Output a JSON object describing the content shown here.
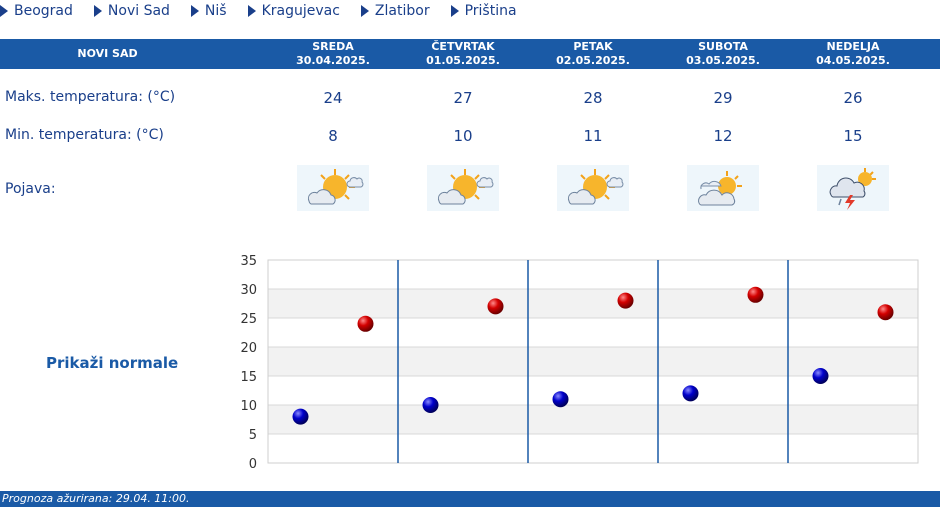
{
  "cities": [
    {
      "name": "Beograd"
    },
    {
      "name": "Novi Sad"
    },
    {
      "name": "Niš"
    },
    {
      "name": "Kragujevac"
    },
    {
      "name": "Zlatibor"
    },
    {
      "name": "Priština"
    }
  ],
  "table": {
    "city_title": "NOVI SAD",
    "days": [
      {
        "name": "SREDA",
        "date": "30.04.2025.",
        "max": "24",
        "min": "8",
        "icon": "sun-cloud-icon"
      },
      {
        "name": "ČETVRTAK",
        "date": "01.05.2025.",
        "max": "27",
        "min": "10",
        "icon": "sun-cloud-icon"
      },
      {
        "name": "PETAK",
        "date": "02.05.2025.",
        "max": "28",
        "min": "11",
        "icon": "sun-cloud-icon"
      },
      {
        "name": "SUBOTA",
        "date": "03.05.2025.",
        "max": "29",
        "min": "12",
        "icon": "cloud-sun-icon"
      },
      {
        "name": "NEDELJA",
        "date": "04.05.2025.",
        "max": "26",
        "min": "15",
        "icon": "thunderstorm-icon"
      }
    ],
    "max_label": "Maks. temperatura: (°C)",
    "min_label": "Min. temperatura: (°C)",
    "phenomenon_label": "Pojava:"
  },
  "normals_link": "Prikaži normale",
  "chart_data": {
    "type": "scatter",
    "categories": [
      "30.04.2025.",
      "01.05.2025.",
      "02.05.2025.",
      "03.05.2025.",
      "04.05.2025."
    ],
    "series": [
      {
        "values": [
          24,
          27,
          28,
          29,
          26
        ],
        "color": "#cc0000"
      },
      {
        "values": [
          8,
          10,
          11,
          12,
          15
        ],
        "color": "#0a0aaa"
      }
    ],
    "ylim": [
      0,
      35
    ],
    "yticks": [
      "0",
      "5",
      "10",
      "15",
      "20",
      "25",
      "30",
      "35"
    ],
    "grid": true
  },
  "footer": "Prognoza ažurirana:  29.04. 11:00."
}
